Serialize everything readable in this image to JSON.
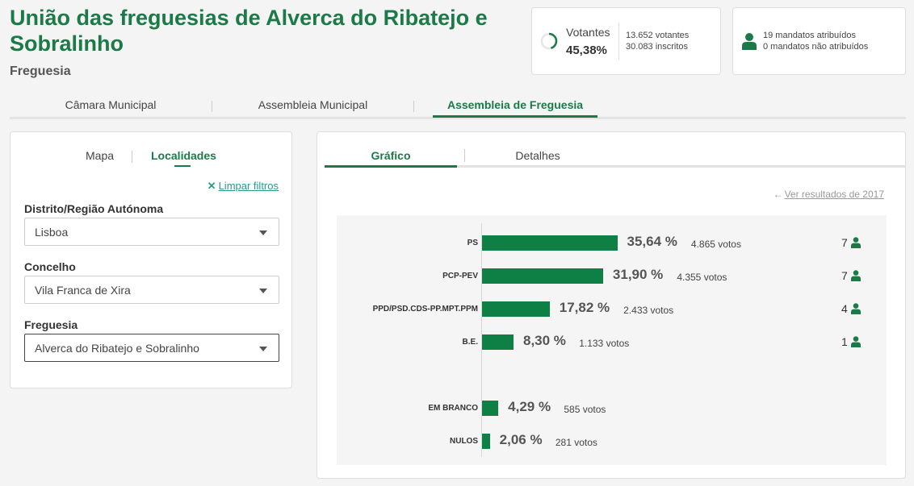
{
  "header": {
    "title": "União das freguesias de Alverca do Ribatejo e Sobralinho",
    "subtitle": "Freguesia"
  },
  "votantes": {
    "label": "Votantes",
    "pct": "45,38%",
    "votantes_text": "13.652 votantes",
    "inscritos_text": "30.083 inscritos",
    "fraction": 0.4538,
    "accent": "#1b7a47"
  },
  "mandatos": {
    "icon": "person-icon",
    "atribuidos": "19 mandatos atribuídos",
    "nao_atribuidos": "0 mandatos não atribuídos"
  },
  "top_tabs": {
    "items": [
      "Câmara Municipal",
      "Assembleia Municipal",
      "Assembleia de Freguesia"
    ],
    "active": "Assembleia de Freguesia"
  },
  "filters": {
    "tabs": [
      "Mapa",
      "Localidades"
    ],
    "active_tab": "Localidades",
    "clear_label": "Limpar filtros",
    "distrito": {
      "label": "Distrito/Região Autónoma",
      "value": "Lisboa"
    },
    "concelho": {
      "label": "Concelho",
      "value": "Vila Franca de Xira"
    },
    "freguesia": {
      "label": "Freguesia",
      "value": "Alverca do Ribatejo e Sobralinho"
    }
  },
  "results": {
    "tabs": [
      "Gráfico",
      "Detalhes"
    ],
    "active_tab": "Gráfico",
    "previous_link": "Ver resultados de 2017"
  },
  "chart_data": {
    "type": "bar",
    "orientation": "horizontal",
    "bar_color": "#0e7f45",
    "categories": [
      "PS",
      "PCP-PEV",
      "PPD/PSD.CDS-PP.MPT.PPM",
      "B.E.",
      "EM BRANCO",
      "NULOS"
    ],
    "values": [
      35.64,
      31.9,
      17.82,
      8.3,
      4.29,
      2.06
    ],
    "pct_labels": [
      "35,64 %",
      "31,90 %",
      "17,82 %",
      "8,30 %",
      "4,29 %",
      "2,06 %"
    ],
    "vote_labels": [
      "4.865 votos",
      "4.355 votos",
      "2.433 votos",
      "1.133 votos",
      "585 votos",
      "281 votos"
    ],
    "seats": [
      "7",
      "7",
      "4",
      "1",
      null,
      null
    ]
  }
}
